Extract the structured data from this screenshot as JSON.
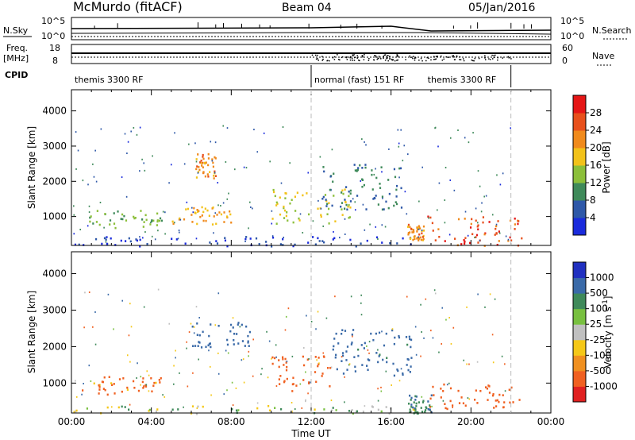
{
  "header": {
    "radar": "McMurdo (fitACF)",
    "beam": "Beam 04",
    "date": "05/Jan/2016"
  },
  "status_panels": {
    "nsky_label": "N.Sky",
    "nsky_ticks": [
      "10^5",
      "10^0"
    ],
    "nsearch_label": "N.Search",
    "nsearch_ticks": [
      "10^5",
      "10^0"
    ],
    "freq_label": "Freq.",
    "freq_unit": "[MHz]",
    "freq_ticks": [
      "18",
      "8"
    ],
    "nave_label": "Nave",
    "nave_ticks": [
      "60",
      "0"
    ],
    "cpid_label": "CPID",
    "cpid_segments": [
      {
        "label": "themis 3300 RF",
        "start_h": 0,
        "end_h": 12
      },
      {
        "label": "normal (fast) 151 RF",
        "start_h": 12,
        "end_h": 22
      },
      {
        "label": "themis 3300 RF",
        "start_h": 22,
        "end_h": 24
      }
    ]
  },
  "axes": {
    "ylabel": "Slant Range [km]",
    "xlabel": "Time UT",
    "xticks": [
      "00:00",
      "04:00",
      "08:00",
      "12:00",
      "16:00",
      "20:00",
      "00:00"
    ],
    "yticks": [
      "1000",
      "2000",
      "3000",
      "4000"
    ]
  },
  "colors": {
    "power": [
      "#1a2bdc",
      "#2e58a8",
      "#3f8a5a",
      "#8cbf3a",
      "#f2c21a",
      "#f08a1c",
      "#e8501c",
      "#e51616"
    ],
    "velocity": [
      "#2030c0",
      "#3a6aa8",
      "#3f8a5a",
      "#78c040",
      "#c0c0c0",
      "#f5c818",
      "#f09020",
      "#f06020",
      "#e02020"
    ]
  },
  "chart_data": [
    {
      "type": "heatmap",
      "title": "Power",
      "colorbar_label": "Power [dB]",
      "colorbar_ticks": [
        "4",
        "8",
        "12",
        "16",
        "20",
        "24",
        "28"
      ],
      "x_range_h": [
        0,
        24
      ],
      "ylim": [
        180,
        4600
      ],
      "grid": false,
      "regions": [
        {
          "t0": 0.0,
          "t1": 17.3,
          "r0": 180,
          "r1": 450,
          "value": 6
        },
        {
          "t0": 0.5,
          "t1": 4.5,
          "r0": 700,
          "r1": 1200,
          "value": 14
        },
        {
          "t0": 5.0,
          "t1": 8.0,
          "r0": 800,
          "r1": 1300,
          "value": 22
        },
        {
          "t0": 6.2,
          "t1": 7.2,
          "r0": 2100,
          "r1": 2800,
          "value": 24
        },
        {
          "t0": 10.0,
          "t1": 14.0,
          "r0": 800,
          "r1": 1800,
          "value": 18
        },
        {
          "t0": 12.5,
          "t1": 16.5,
          "r0": 1200,
          "r1": 2500,
          "value": 10
        },
        {
          "t0": 17.8,
          "t1": 22.5,
          "r0": 180,
          "r1": 1050,
          "value": 28
        },
        {
          "t0": 16.8,
          "t1": 17.6,
          "r0": 350,
          "r1": 800,
          "value": 24
        }
      ]
    },
    {
      "type": "heatmap",
      "title": "Velocity",
      "colorbar_label": "Velocity [m s^-1]",
      "colorbar_ticks": [
        "1000",
        "500",
        "100",
        "25",
        "-25",
        "-100",
        "-500",
        "-1000"
      ],
      "x_range_h": [
        0,
        24
      ],
      "ylim": [
        180,
        4600
      ],
      "grid": false,
      "regions": [
        {
          "t0": 0.0,
          "t1": 17.3,
          "r0": 180,
          "r1": 400,
          "value": 0
        },
        {
          "t0": 0.5,
          "t1": 4.5,
          "r0": 700,
          "r1": 1200,
          "value": -150
        },
        {
          "t0": 6.0,
          "t1": 9.0,
          "r0": 2000,
          "r1": 2700,
          "value": 200
        },
        {
          "t0": 10.0,
          "t1": 13.0,
          "r0": 800,
          "r1": 1800,
          "value": -200
        },
        {
          "t0": 13.0,
          "t1": 17.0,
          "r0": 1200,
          "r1": 2500,
          "value": 150
        },
        {
          "t0": 17.8,
          "t1": 22.5,
          "r0": 300,
          "r1": 1000,
          "value": -200
        },
        {
          "t0": 16.8,
          "t1": 18.0,
          "r0": 180,
          "r1": 700,
          "value": 100
        }
      ]
    }
  ]
}
